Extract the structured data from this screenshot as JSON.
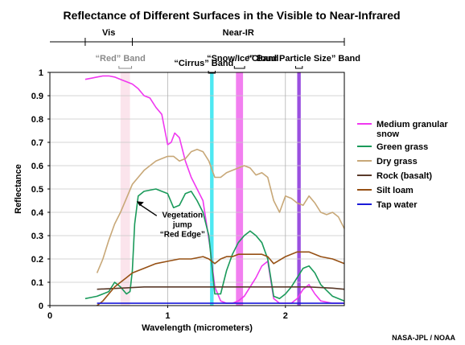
{
  "chart_data": {
    "type": "line",
    "title": "Reflectance of Different Surfaces in the Visible to Near-Infrared",
    "xlabel": "Wavelength (micrometers)",
    "ylabel": "Reflectance",
    "xlim": [
      0,
      2.5
    ],
    "ylim": [
      0,
      1
    ],
    "x_ticks": [
      "0",
      "1",
      "2"
    ],
    "y_ticks": [
      "0",
      "0.1",
      "0.2",
      "0.3",
      "0.4",
      "0.5",
      "0.6",
      "0.7",
      "0.8",
      "0.9",
      "1"
    ],
    "grid": true,
    "legend_position": "right",
    "regions": [
      {
        "label": "Vis",
        "from": 0.3,
        "to": 0.7
      },
      {
        "label": "Near-IR",
        "from": 0.7,
        "to": 2.5
      }
    ],
    "bands": [
      {
        "label": "“Red” Band",
        "from": 0.6,
        "to": 0.68,
        "color": "#fbe4ec",
        "label_grey": true
      },
      {
        "label": "“Cirrus” Band",
        "from": 1.36,
        "to": 1.39,
        "color": "#4de8f2",
        "label_grey": false
      },
      {
        "label": "“Snow/Ice” Band",
        "from": 1.58,
        "to": 1.64,
        "color": "#f27ff0",
        "label_grey": false
      },
      {
        "label": "“Cloud Particle Size” Band",
        "from": 2.1,
        "to": 2.13,
        "color": "#9a4fe0",
        "label_grey": false
      }
    ],
    "annotation": {
      "lines": [
        "Vegetation",
        "jump",
        "“Red Edge”"
      ],
      "x": 0.75,
      "y": 0.33
    },
    "credit": "NASA-JPL / NOAA",
    "series": [
      {
        "name": "Medium granular snow",
        "color": "#f038f0",
        "x": [
          0.3,
          0.35,
          0.4,
          0.45,
          0.5,
          0.55,
          0.6,
          0.65,
          0.7,
          0.75,
          0.8,
          0.85,
          0.9,
          0.95,
          1.0,
          1.03,
          1.06,
          1.1,
          1.15,
          1.2,
          1.25,
          1.3,
          1.33,
          1.36,
          1.4,
          1.45,
          1.5,
          1.55,
          1.6,
          1.65,
          1.7,
          1.75,
          1.8,
          1.85,
          1.9,
          1.95,
          2.0,
          2.05,
          2.1,
          2.15,
          2.2,
          2.25,
          2.3,
          2.4,
          2.5
        ],
        "y": [
          0.97,
          0.975,
          0.98,
          0.985,
          0.985,
          0.98,
          0.97,
          0.96,
          0.95,
          0.93,
          0.9,
          0.89,
          0.85,
          0.82,
          0.69,
          0.7,
          0.74,
          0.72,
          0.62,
          0.55,
          0.5,
          0.45,
          0.35,
          0.25,
          0.08,
          0.02,
          0.01,
          0.01,
          0.02,
          0.04,
          0.08,
          0.12,
          0.17,
          0.19,
          0.03,
          0.01,
          0.01,
          0.01,
          0.03,
          0.07,
          0.09,
          0.05,
          0.02,
          0.01,
          0.01
        ]
      },
      {
        "name": "Green grass",
        "color": "#1a9a5a",
        "x": [
          0.3,
          0.35,
          0.4,
          0.45,
          0.5,
          0.55,
          0.6,
          0.65,
          0.68,
          0.7,
          0.72,
          0.75,
          0.8,
          0.9,
          1.0,
          1.05,
          1.1,
          1.15,
          1.2,
          1.25,
          1.3,
          1.35,
          1.4,
          1.45,
          1.5,
          1.55,
          1.6,
          1.65,
          1.7,
          1.75,
          1.8,
          1.85,
          1.9,
          1.95,
          2.0,
          2.05,
          2.1,
          2.15,
          2.2,
          2.25,
          2.3,
          2.4,
          2.5
        ],
        "y": [
          0.03,
          0.035,
          0.04,
          0.05,
          0.06,
          0.1,
          0.08,
          0.05,
          0.06,
          0.15,
          0.35,
          0.47,
          0.49,
          0.5,
          0.48,
          0.42,
          0.43,
          0.48,
          0.49,
          0.45,
          0.4,
          0.3,
          0.05,
          0.05,
          0.15,
          0.22,
          0.27,
          0.3,
          0.32,
          0.3,
          0.27,
          0.2,
          0.04,
          0.03,
          0.05,
          0.08,
          0.12,
          0.16,
          0.17,
          0.14,
          0.09,
          0.04,
          0.02
        ]
      },
      {
        "name": "Dry grass",
        "color": "#c8a878",
        "x": [
          0.4,
          0.45,
          0.5,
          0.55,
          0.6,
          0.65,
          0.7,
          0.75,
          0.8,
          0.85,
          0.9,
          0.95,
          1.0,
          1.05,
          1.1,
          1.15,
          1.2,
          1.25,
          1.3,
          1.35,
          1.4,
          1.45,
          1.5,
          1.55,
          1.6,
          1.65,
          1.7,
          1.75,
          1.8,
          1.85,
          1.9,
          1.95,
          2.0,
          2.05,
          2.1,
          2.15,
          2.2,
          2.25,
          2.3,
          2.35,
          2.4,
          2.45,
          2.5
        ],
        "y": [
          0.14,
          0.2,
          0.28,
          0.35,
          0.4,
          0.46,
          0.52,
          0.55,
          0.58,
          0.6,
          0.62,
          0.63,
          0.64,
          0.64,
          0.62,
          0.63,
          0.66,
          0.67,
          0.66,
          0.62,
          0.55,
          0.55,
          0.57,
          0.58,
          0.59,
          0.6,
          0.59,
          0.56,
          0.57,
          0.55,
          0.45,
          0.4,
          0.47,
          0.46,
          0.44,
          0.43,
          0.47,
          0.44,
          0.4,
          0.39,
          0.4,
          0.38,
          0.33
        ]
      },
      {
        "name": "Rock (basalt)",
        "color": "#5a3a2a",
        "x": [
          0.4,
          0.6,
          0.8,
          1.0,
          1.2,
          1.4,
          1.6,
          1.8,
          2.0,
          2.2,
          2.4,
          2.5
        ],
        "y": [
          0.07,
          0.075,
          0.08,
          0.08,
          0.08,
          0.08,
          0.08,
          0.08,
          0.08,
          0.08,
          0.075,
          0.07
        ]
      },
      {
        "name": "Silt loam",
        "color": "#965014",
        "x": [
          0.4,
          0.45,
          0.5,
          0.55,
          0.6,
          0.65,
          0.7,
          0.8,
          0.9,
          1.0,
          1.1,
          1.2,
          1.3,
          1.35,
          1.4,
          1.45,
          1.5,
          1.55,
          1.6,
          1.7,
          1.8,
          1.85,
          1.9,
          2.0,
          2.1,
          2.2,
          2.3,
          2.4,
          2.5
        ],
        "y": [
          0.0,
          0.02,
          0.05,
          0.08,
          0.1,
          0.12,
          0.14,
          0.16,
          0.18,
          0.19,
          0.2,
          0.2,
          0.21,
          0.2,
          0.18,
          0.2,
          0.21,
          0.21,
          0.22,
          0.22,
          0.22,
          0.21,
          0.18,
          0.21,
          0.23,
          0.23,
          0.21,
          0.2,
          0.18
        ]
      },
      {
        "name": "Tap water",
        "color": "#1a1ad8",
        "x": [
          0.4,
          0.6,
          0.8,
          1.0,
          1.2,
          1.4,
          1.6,
          1.8,
          2.0,
          2.2,
          2.4,
          2.5
        ],
        "y": [
          0.01,
          0.01,
          0.01,
          0.01,
          0.01,
          0.01,
          0.01,
          0.01,
          0.01,
          0.01,
          0.01,
          0.01
        ]
      }
    ]
  }
}
